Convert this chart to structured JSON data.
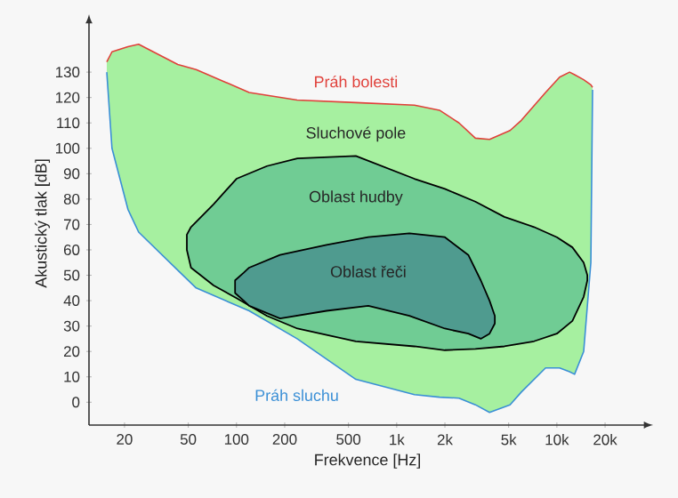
{
  "chart_data": {
    "type": "area",
    "xlabel": "Frekvence [Hz]",
    "ylabel": "Akustický tlak [dB]",
    "log": "x",
    "xlim": [
      12,
      36000
    ],
    "ylim": [
      -9,
      150
    ],
    "xticks": [
      20,
      50,
      100,
      200,
      500,
      {
        "value": 1000,
        "label": "1k"
      },
      {
        "value": 2000,
        "label": "2k"
      },
      {
        "value": 5000,
        "label": "5k"
      },
      {
        "value": 10000,
        "label": "10k"
      },
      {
        "value": 20000,
        "label": "20k"
      }
    ],
    "yticks": [
      0,
      10,
      20,
      30,
      40,
      50,
      60,
      70,
      80,
      90,
      100,
      110,
      120,
      130
    ],
    "annotations": [
      "Sluchové pole",
      "Oblast hudby",
      "Oblast řeči"
    ],
    "series": [
      {
        "color": "#a6f0a0",
        "x": [
          15.5,
          16.7,
          21,
          24.5,
          43,
          56,
          120,
          239,
          556,
          1290,
          1850,
          2450,
          3100,
          3800,
          5100,
          6000,
          8500,
          10400,
          12000,
          12900,
          14700,
          16300,
          16700
        ],
        "values": [
          null,
          null,
          null,
          null,
          null,
          null,
          null,
          null,
          null,
          null,
          null,
          null,
          null,
          null,
          null,
          null,
          null,
          null,
          null,
          null,
          null,
          null,
          null
        ],
        "lower": [
          130,
          100,
          76,
          67,
          52,
          45,
          36,
          25,
          9,
          3,
          2,
          1.6,
          -1,
          -4,
          -1,
          4,
          13.5,
          13.5,
          12,
          11,
          20,
          55,
          123
        ],
        "upper": [
          134,
          138,
          140,
          141,
          133,
          131,
          122,
          119,
          118,
          117,
          115,
          110,
          104,
          103.5,
          107,
          111,
          122,
          128,
          130,
          129,
          127,
          125,
          124
        ]
      },
      {
        "color": "#70cc94",
        "x": [
          49,
          52,
          72,
          100,
          155,
          240,
          556,
          1290,
          2000,
          3100,
          4700,
          7200,
          10000,
          12500,
          14700,
          15500
        ],
        "values": [
          null,
          null,
          null,
          null,
          null,
          null,
          null,
          null,
          null,
          null,
          null,
          null,
          null,
          null,
          null,
          null
        ],
        "lower": [
          60,
          53,
          46,
          41,
          34,
          29,
          24,
          22,
          20.5,
          21,
          22,
          24,
          27,
          32,
          41.5,
          48
        ],
        "upper": [
          66,
          69,
          78,
          88,
          93,
          96,
          97,
          88,
          84,
          79,
          73,
          69,
          65,
          61,
          55,
          50
        ]
      },
      {
        "color": "#4f9b8f",
        "x": [
          98,
          111,
          120,
          187,
          365,
          665,
          1200,
          2000,
          2800,
          3350,
          3800,
          4100
        ],
        "values": [
          null,
          null,
          null,
          null,
          null,
          null,
          null,
          null,
          null,
          null,
          null,
          null
        ],
        "lower": [
          43,
          40,
          38,
          33,
          36,
          38,
          34,
          29,
          27,
          25,
          27,
          31
        ],
        "upper": [
          48,
          51,
          53,
          58,
          62,
          65,
          66.5,
          65,
          58,
          48,
          40,
          34
        ]
      },
      {
        "type": "line",
        "name": "Práh bolesti",
        "color": "#e0403a",
        "x": [
          15.5,
          16.7,
          21,
          24.5,
          43,
          56,
          120,
          239,
          556,
          1290,
          1850,
          2450,
          3100,
          3800,
          5100,
          6000,
          8500,
          10400,
          12000,
          12900,
          14700,
          16300,
          16700
        ],
        "values": [
          134,
          138,
          140,
          141,
          133,
          131,
          122,
          119,
          118,
          117,
          115,
          110,
          104,
          103.5,
          107,
          111,
          122,
          128,
          130,
          129,
          127,
          125,
          124
        ]
      },
      {
        "type": "line",
        "name": "Práh sluchu",
        "color": "#3a8fd6",
        "x": [
          15.5,
          16.7,
          21,
          24.5,
          43,
          56,
          120,
          239,
          556,
          1290,
          1850,
          2450,
          3100,
          3800,
          5100,
          6000,
          8500,
          10400,
          12000,
          12900,
          14700,
          16300,
          16700
        ],
        "values": [
          130,
          100,
          76,
          67,
          52,
          45,
          36,
          25,
          9,
          3,
          2,
          1.6,
          -1,
          -4,
          -1,
          4,
          13.5,
          13.5,
          12,
          11,
          20,
          55,
          123
        ]
      }
    ]
  }
}
